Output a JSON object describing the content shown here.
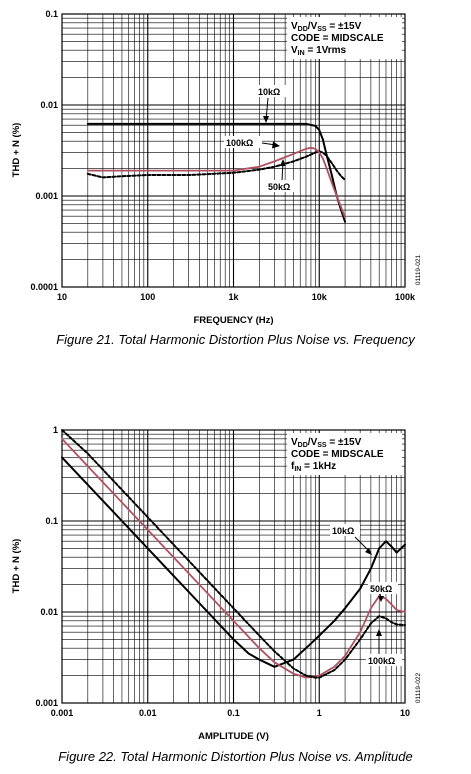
{
  "figures": [
    {
      "caption": "Figure 21. Total Harmonic Distortion Plus Noise vs. Frequency",
      "code": "01119-021",
      "conditions": {
        "l1_main": "V",
        "l1_sub1": "DD",
        "l1_mid": "/V",
        "l1_sub2": "SS",
        "l1_rest": " = ±15V",
        "l2": "CODE = MIDSCALE",
        "l3_main": "V",
        "l3_sub": "IN",
        "l3_rest": " = 1Vrms"
      },
      "curve_labels": {
        "s10k": "10kΩ",
        "s100k": "100kΩ",
        "s50k": "50kΩ"
      }
    },
    {
      "caption": "Figure 22. Total Harmonic Distortion Plus Noise vs. Amplitude",
      "code": "01119-022",
      "conditions": {
        "l1_main": "V",
        "l1_sub1": "DD",
        "l1_mid": "/V",
        "l1_sub2": "SS",
        "l1_rest": " = ±15V",
        "l2": "CODE = MIDSCALE",
        "l3_main": "f",
        "l3_sub": "IN",
        "l3_rest": " = 1kHz"
      },
      "curve_labels": {
        "s10k": "10kΩ",
        "s50k": "50kΩ",
        "s100k": "100kΩ"
      }
    }
  ],
  "chart_data": [
    {
      "type": "line",
      "xlabel": "FREQUENCY (Hz)",
      "ylabel": "THD + N (%)",
      "xscale": "log",
      "yscale": "log",
      "xlim": [
        10,
        100000
      ],
      "ylim": [
        0.0001,
        0.1
      ],
      "x_tick_labels": [
        "10",
        "100",
        "1k",
        "10k",
        "100k"
      ],
      "y_tick_labels": [
        "0.0001",
        "0.001",
        "0.01",
        "0.1"
      ],
      "grid": true,
      "series": [
        {
          "name": "10kΩ",
          "color": "#000000",
          "style": "solid",
          "x": [
            20,
            50,
            100,
            300,
            1000,
            3000,
            7000,
            9000,
            10000,
            11000,
            12000,
            14000,
            16000,
            18000,
            20000
          ],
          "y": [
            0.0062,
            0.0062,
            0.0062,
            0.0062,
            0.0062,
            0.0062,
            0.0062,
            0.0059,
            0.0053,
            0.0042,
            0.003,
            0.0017,
            0.001,
            0.0007,
            0.00052
          ]
        },
        {
          "name": "100kΩ",
          "color": "#000000",
          "style": "dashed",
          "x": [
            20,
            30,
            50,
            100,
            300,
            1000,
            2000,
            3000,
            5000,
            7000,
            9000,
            10000,
            11000,
            12000,
            14000,
            16000,
            18000,
            20000
          ],
          "y": [
            0.00175,
            0.0016,
            0.00165,
            0.0017,
            0.0017,
            0.0018,
            0.00195,
            0.0021,
            0.0024,
            0.0027,
            0.003,
            0.0031,
            0.003,
            0.0028,
            0.0023,
            0.0019,
            0.00165,
            0.0015
          ]
        },
        {
          "name": "50kΩ",
          "color": "#b05060",
          "style": "solid",
          "x": [
            20,
            50,
            100,
            300,
            1000,
            2000,
            3000,
            5000,
            7000,
            8000,
            9000,
            10000,
            11000,
            12000,
            14000,
            16000,
            18000,
            20000
          ],
          "y": [
            0.0019,
            0.0019,
            0.0019,
            0.0019,
            0.0019,
            0.0021,
            0.0024,
            0.0029,
            0.0033,
            0.0034,
            0.0033,
            0.003,
            0.0026,
            0.0021,
            0.0014,
            0.001,
            0.00075,
            0.00058
          ]
        }
      ]
    },
    {
      "type": "line",
      "xlabel": "AMPLITUDE (V)",
      "ylabel": "THD + N (%)",
      "xscale": "log",
      "yscale": "log",
      "xlim": [
        0.001,
        10
      ],
      "ylim": [
        0.001,
        1
      ],
      "x_tick_labels": [
        "0.001",
        "0.01",
        "0.1",
        "1",
        "10"
      ],
      "y_tick_labels": [
        "0.001",
        "0.01",
        "0.1",
        "1"
      ],
      "grid": true,
      "series": [
        {
          "name": "10kΩ",
          "color": "#000000",
          "style": "solid",
          "x": [
            0.001,
            0.002,
            0.005,
            0.01,
            0.02,
            0.05,
            0.1,
            0.15,
            0.2,
            0.3,
            0.5,
            0.8,
            1,
            1.5,
            2,
            3,
            4,
            5,
            6,
            7,
            8,
            10
          ],
          "y": [
            0.5,
            0.25,
            0.1,
            0.05,
            0.025,
            0.01,
            0.005,
            0.0035,
            0.003,
            0.0025,
            0.003,
            0.0045,
            0.0055,
            0.008,
            0.011,
            0.018,
            0.03,
            0.05,
            0.06,
            0.052,
            0.045,
            0.055
          ]
        },
        {
          "name": "50kΩ",
          "color": "#b05060",
          "style": "solid",
          "x": [
            0.001,
            0.002,
            0.005,
            0.01,
            0.02,
            0.05,
            0.1,
            0.2,
            0.3,
            0.5,
            0.7,
            1,
            1.5,
            2,
            3,
            4,
            5,
            6,
            7,
            8,
            10
          ],
          "y": [
            0.8,
            0.4,
            0.16,
            0.08,
            0.04,
            0.016,
            0.008,
            0.004,
            0.0028,
            0.0021,
            0.0019,
            0.002,
            0.0025,
            0.0033,
            0.006,
            0.011,
            0.015,
            0.014,
            0.012,
            0.0105,
            0.01
          ]
        },
        {
          "name": "100kΩ",
          "color": "#000000",
          "style": "dashed",
          "x": [
            0.001,
            0.002,
            0.005,
            0.01,
            0.02,
            0.05,
            0.1,
            0.2,
            0.3,
            0.5,
            0.7,
            0.9,
            1,
            1.5,
            2,
            3,
            4,
            5,
            6,
            7,
            8,
            10
          ],
          "y": [
            1.0,
            0.55,
            0.22,
            0.11,
            0.055,
            0.022,
            0.011,
            0.0055,
            0.0037,
            0.0024,
            0.002,
            0.0019,
            0.0019,
            0.0023,
            0.003,
            0.005,
            0.0075,
            0.009,
            0.0085,
            0.0077,
            0.0073,
            0.0072
          ]
        }
      ]
    }
  ]
}
